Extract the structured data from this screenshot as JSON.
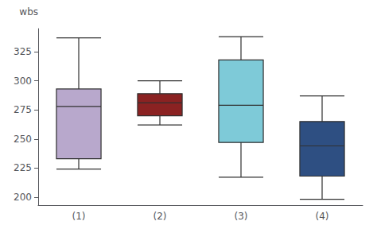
{
  "chart_data": {
    "type": "boxplot",
    "ylabel": "wbs",
    "categories": [
      "(1)",
      "(2)",
      "(3)",
      "(4)"
    ],
    "values": [
      [
        224,
        233,
        278,
        293,
        337
      ],
      [
        262,
        270,
        281,
        289,
        300
      ],
      [
        217,
        247,
        279,
        318,
        338
      ],
      [
        198,
        218,
        244,
        265,
        287
      ]
    ],
    "colors": [
      "#b8a8cc",
      "#8b2222",
      "#7ecad8",
      "#2e4f82"
    ],
    "ylim": [
      193,
      345
    ],
    "yticks": [
      200,
      225,
      250,
      275,
      300,
      325
    ],
    "grid": false
  }
}
